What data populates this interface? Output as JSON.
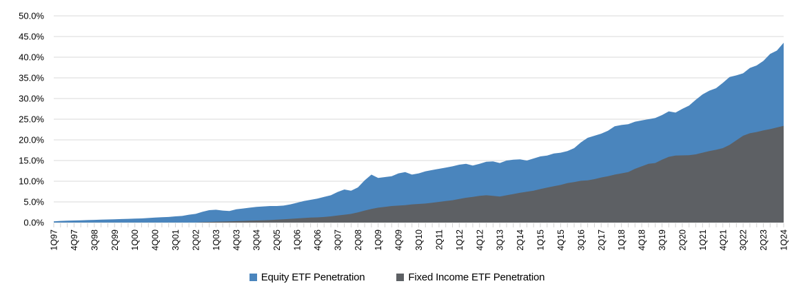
{
  "chart_data": {
    "type": "area",
    "title": "",
    "stacked": false,
    "grid": true,
    "legend_position": "bottom-center",
    "ylim": [
      0,
      50
    ],
    "y_ticks": {
      "values": [
        0,
        5,
        10,
        15,
        20,
        25,
        30,
        35,
        40,
        45,
        50
      ],
      "labels": [
        "0.0%",
        "5.0%",
        "10.0%",
        "15.0%",
        "20.0%",
        "25.0%",
        "30.0%",
        "35.0%",
        "40.0%",
        "45.0%",
        "50.0%"
      ]
    },
    "x_label_every": 3,
    "x_tick_labels": [
      "1Q97",
      "4Q97",
      "3Q98",
      "2Q99",
      "1Q00",
      "4Q00",
      "3Q01",
      "2Q02",
      "1Q03",
      "4Q03",
      "3Q04",
      "2Q05",
      "1Q06",
      "4Q06",
      "3Q07",
      "2Q08",
      "1Q09",
      "4Q09",
      "3Q10",
      "2Q11",
      "1Q12",
      "4Q12",
      "3Q13",
      "2Q14",
      "1Q15",
      "4Q15",
      "3Q16",
      "2Q17",
      "1Q18",
      "4Q18",
      "3Q19",
      "2Q20",
      "1Q21",
      "4Q21",
      "3Q22",
      "2Q23",
      "1Q24"
    ],
    "categories": [
      "1Q97",
      "2Q97",
      "3Q97",
      "4Q97",
      "1Q98",
      "2Q98",
      "3Q98",
      "4Q98",
      "1Q99",
      "2Q99",
      "3Q99",
      "4Q99",
      "1Q00",
      "2Q00",
      "3Q00",
      "4Q00",
      "1Q01",
      "2Q01",
      "3Q01",
      "4Q01",
      "1Q02",
      "2Q02",
      "3Q02",
      "4Q02",
      "1Q03",
      "2Q03",
      "3Q03",
      "4Q03",
      "1Q04",
      "2Q04",
      "3Q04",
      "4Q04",
      "1Q05",
      "2Q05",
      "3Q05",
      "4Q05",
      "1Q06",
      "2Q06",
      "3Q06",
      "4Q06",
      "1Q07",
      "2Q07",
      "3Q07",
      "4Q07",
      "1Q08",
      "2Q08",
      "3Q08",
      "4Q08",
      "1Q09",
      "2Q09",
      "3Q09",
      "4Q09",
      "1Q10",
      "2Q10",
      "3Q10",
      "4Q10",
      "1Q11",
      "2Q11",
      "3Q11",
      "4Q11",
      "1Q12",
      "2Q12",
      "3Q12",
      "4Q12",
      "1Q13",
      "2Q13",
      "3Q13",
      "4Q13",
      "1Q14",
      "2Q14",
      "3Q14",
      "4Q14",
      "1Q15",
      "2Q15",
      "3Q15",
      "4Q15",
      "1Q16",
      "2Q16",
      "3Q16",
      "4Q16",
      "1Q17",
      "2Q17",
      "3Q17",
      "4Q17",
      "1Q18",
      "2Q18",
      "3Q18",
      "4Q18",
      "1Q19",
      "2Q19",
      "3Q19",
      "4Q19",
      "1Q20",
      "2Q20",
      "3Q20",
      "4Q20",
      "1Q21",
      "2Q21",
      "3Q21",
      "4Q21",
      "1Q22",
      "2Q22",
      "3Q22",
      "4Q22",
      "1Q23",
      "2Q23",
      "3Q23",
      "4Q23",
      "1Q24"
    ],
    "series": [
      {
        "name": "Equity ETF Penetration",
        "key": "equity-etf-penetration",
        "color": "#4a85bd",
        "values": [
          0.3,
          0.4,
          0.45,
          0.5,
          0.55,
          0.6,
          0.65,
          0.7,
          0.75,
          0.8,
          0.85,
          0.9,
          0.95,
          1.0,
          1.1,
          1.2,
          1.3,
          1.35,
          1.5,
          1.6,
          1.9,
          2.1,
          2.6,
          3.0,
          3.1,
          2.9,
          2.8,
          3.2,
          3.4,
          3.6,
          3.8,
          3.9,
          4.0,
          4.0,
          4.1,
          4.4,
          4.8,
          5.2,
          5.5,
          5.8,
          6.2,
          6.6,
          7.4,
          8.0,
          7.7,
          8.5,
          10.2,
          11.6,
          10.8,
          11.0,
          11.2,
          11.9,
          12.2,
          11.6,
          11.9,
          12.4,
          12.7,
          13.0,
          13.3,
          13.6,
          14.0,
          14.2,
          13.8,
          14.2,
          14.7,
          14.8,
          14.4,
          15.0,
          15.2,
          15.3,
          15.0,
          15.5,
          16.0,
          16.2,
          16.7,
          16.9,
          17.3,
          18.0,
          19.4,
          20.5,
          21.0,
          21.5,
          22.2,
          23.3,
          23.6,
          23.8,
          24.4,
          24.7,
          25.0,
          25.3,
          26.0,
          26.9,
          26.6,
          27.5,
          28.3,
          29.7,
          31.0,
          31.9,
          32.5,
          33.8,
          35.2,
          35.6,
          36.1,
          37.4,
          38.0,
          39.1,
          40.8,
          41.6,
          43.5
        ]
      },
      {
        "name": "Fixed Income ETF Penetration",
        "key": "fixed-income-etf-penetration",
        "color": "#5d6064",
        "values": [
          0,
          0,
          0,
          0,
          0,
          0,
          0,
          0,
          0,
          0,
          0,
          0,
          0,
          0,
          0,
          0,
          0,
          0,
          0,
          0,
          0,
          0,
          0.1,
          0.15,
          0.2,
          0.25,
          0.3,
          0.35,
          0.4,
          0.45,
          0.5,
          0.55,
          0.6,
          0.7,
          0.8,
          0.9,
          1.0,
          1.1,
          1.2,
          1.25,
          1.35,
          1.5,
          1.7,
          1.9,
          2.1,
          2.45,
          2.9,
          3.3,
          3.6,
          3.8,
          4.0,
          4.1,
          4.2,
          4.4,
          4.5,
          4.6,
          4.8,
          5.0,
          5.2,
          5.4,
          5.7,
          6.0,
          6.2,
          6.45,
          6.6,
          6.45,
          6.3,
          6.6,
          6.9,
          7.2,
          7.45,
          7.7,
          8.1,
          8.45,
          8.8,
          9.1,
          9.55,
          9.8,
          10.1,
          10.2,
          10.5,
          10.9,
          11.2,
          11.6,
          11.9,
          12.2,
          13.0,
          13.6,
          14.2,
          14.4,
          15.2,
          15.9,
          16.2,
          16.25,
          16.3,
          16.5,
          16.9,
          17.3,
          17.6,
          18.0,
          18.8,
          19.9,
          21.0,
          21.6,
          21.9,
          22.3,
          22.6,
          23.0,
          23.4
        ]
      }
    ],
    "colors": {
      "gridline": "#d9d9d9",
      "tick": "#d3d3d3",
      "axis_text": "#000000"
    }
  },
  "legend": {
    "equity_label": "Equity ETF Penetration",
    "fixed_income_label": "Fixed Income ETF Penetration"
  }
}
